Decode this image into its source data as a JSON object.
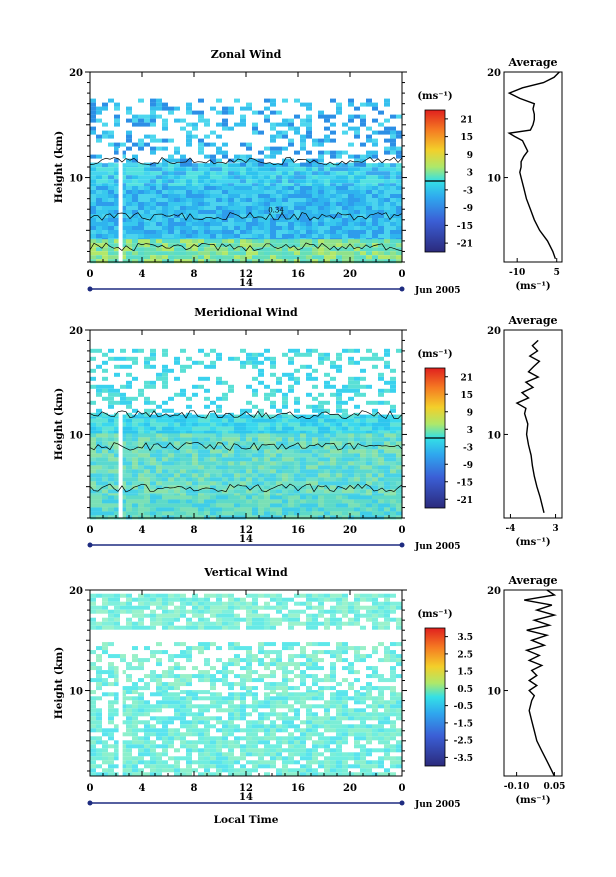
{
  "chart_data": [
    {
      "type": "heatmap",
      "title": "Zonal Wind",
      "ylabel": "Height (km)",
      "ylim": [
        2,
        20
      ],
      "y_ticks": [
        "20",
        "10"
      ],
      "x_ticks": [
        "0",
        "4",
        "8",
        "12",
        "16",
        "20",
        "0"
      ],
      "xlim": [
        0,
        24
      ],
      "date_marker": "14",
      "date_label": "Jun 2005",
      "colorbar": {
        "unit": "(ms⁻¹)",
        "min": -24,
        "max": 24,
        "ticks": [
          "21",
          "15",
          "9",
          "3",
          "-3",
          "-9",
          "-15",
          "-21"
        ]
      },
      "contour_label": "0.34",
      "average": {
        "title": "Average",
        "unit": "(ms⁻¹)",
        "x_ticks": [
          "-10",
          "5"
        ],
        "xlim": [
          -15,
          7
        ],
        "y_ticks": [
          "20",
          "10"
        ],
        "height": [
          2.3,
          3,
          4,
          5,
          6,
          7,
          8,
          9,
          10,
          10.5,
          11,
          11.5,
          12,
          12.5,
          13,
          13.5,
          13.9,
          14.2,
          14.5,
          15,
          15.5,
          16,
          16.5,
          17,
          17.5,
          18,
          18.5,
          19,
          19.5,
          20
        ],
        "value": [
          4.5,
          3.5,
          1.5,
          -1.5,
          -3.5,
          -5,
          -6.5,
          -7.5,
          -8.5,
          -9,
          -8.5,
          -8.5,
          -7.5,
          -6,
          -7,
          -8,
          -11,
          -13,
          -5,
          -4,
          -3.5,
          -3.5,
          -4,
          -3.5,
          -9,
          -13,
          -8,
          0,
          4,
          6
        ]
      }
    },
    {
      "type": "heatmap",
      "title": "Meridional Wind",
      "ylabel": "Height (km)",
      "ylim": [
        2,
        20
      ],
      "y_ticks": [
        "20",
        "10"
      ],
      "x_ticks": [
        "0",
        "4",
        "8",
        "12",
        "16",
        "20",
        "0"
      ],
      "xlim": [
        0,
        24
      ],
      "date_marker": "14",
      "date_label": "Jun 2005",
      "colorbar": {
        "unit": "(ms⁻¹)",
        "min": -24,
        "max": 24,
        "ticks": [
          "21",
          "15",
          "9",
          "3",
          "-3",
          "-9",
          "-15",
          "-21"
        ]
      },
      "average": {
        "title": "Average",
        "unit": "(ms⁻¹)",
        "x_ticks": [
          "-4",
          "3"
        ],
        "xlim": [
          -5,
          4
        ],
        "y_ticks": [
          "20",
          "10"
        ],
        "height": [
          2.5,
          3,
          4,
          5,
          6,
          7,
          8,
          9,
          10,
          11,
          12,
          12.5,
          13,
          13.5,
          14,
          14.5,
          15,
          15.5,
          16,
          16.5,
          17,
          17.5,
          18,
          18.5,
          19
        ],
        "value": [
          1.2,
          1.0,
          0.6,
          0.1,
          -0.3,
          -0.6,
          -0.8,
          -1.2,
          -1.5,
          -1.3,
          -1.8,
          -1.6,
          -3.0,
          -1.2,
          -2.2,
          -0.5,
          -1.6,
          0.3,
          -1.2,
          -0.4,
          0.5,
          -1.0,
          0.2,
          -0.6,
          0.3
        ]
      }
    },
    {
      "type": "heatmap",
      "title": "Vertical Wind",
      "ylabel": "Height (km)",
      "ylim": [
        1.5,
        20
      ],
      "y_ticks": [
        "20",
        "10"
      ],
      "x_ticks": [
        "0",
        "4",
        "8",
        "12",
        "16",
        "20",
        "0"
      ],
      "xlim": [
        0,
        24
      ],
      "xlabel": "Local Time",
      "date_marker": "14",
      "date_label": "Jun 2005",
      "colorbar": {
        "unit": "(ms⁻¹)",
        "min": -4,
        "max": 4,
        "ticks": [
          "3.5",
          "2.5",
          "1.5",
          "0.5",
          "-0.5",
          "-1.5",
          "-2.5",
          "-3.5"
        ]
      },
      "average": {
        "title": "Average",
        "unit": "(ms⁻¹)",
        "x_ticks": [
          "-0.10",
          "0.05"
        ],
        "xlim": [
          -0.15,
          0.08
        ],
        "y_ticks": [
          "20",
          "10"
        ],
        "height": [
          1.5,
          2,
          3,
          4,
          5,
          6,
          7,
          8,
          9,
          9.5,
          10,
          10.5,
          11,
          11.5,
          12,
          12.5,
          13,
          13.5,
          14,
          14.5,
          15,
          15.5,
          16,
          16.5,
          17,
          17.5,
          18,
          18.5,
          19,
          19.5,
          20
        ],
        "value": [
          0.05,
          0.04,
          0.02,
          0.0,
          -0.02,
          -0.03,
          -0.04,
          -0.05,
          -0.04,
          -0.03,
          -0.05,
          -0.02,
          -0.05,
          -0.02,
          -0.04,
          0.0,
          -0.05,
          -0.01,
          -0.06,
          0.01,
          -0.04,
          0.02,
          -0.06,
          0.03,
          -0.03,
          0.05,
          -0.02,
          0.04,
          -0.07,
          0.05,
          0.02
        ]
      }
    }
  ]
}
